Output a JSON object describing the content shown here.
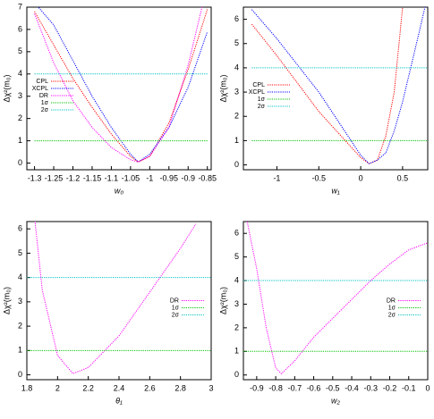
{
  "chart_data": [
    {
      "type": "line",
      "x_label": "w₀",
      "y_label": "Δχ²(m₀)",
      "x": [
        -1.3,
        -1.25,
        -1.2,
        -1.15,
        -1.1,
        -1.05,
        -1.03,
        -1.0,
        -0.95,
        -0.9,
        -0.85
      ],
      "series": [
        {
          "name": "CPL",
          "color": "#ff0000",
          "values": [
            6.8,
            5.3,
            3.8,
            2.5,
            1.3,
            0.3,
            0.05,
            0.3,
            1.8,
            4.2,
            6.9
          ]
        },
        {
          "name": "XCPL",
          "color": "#0000ff",
          "values": [
            7.2,
            6.2,
            4.6,
            3.0,
            1.6,
            0.4,
            0.05,
            0.4,
            1.6,
            3.4,
            5.9
          ]
        },
        {
          "name": "DR",
          "color": "#ff00ff",
          "values": [
            6.7,
            4.5,
            2.8,
            1.6,
            0.7,
            0.15,
            0.05,
            0.3,
            1.6,
            4.4,
            8
          ]
        },
        {
          "name": "1σ",
          "color": "#00c000",
          "values": [
            1,
            1,
            1,
            1,
            1,
            1,
            1,
            1,
            1,
            1,
            1
          ]
        },
        {
          "name": "2σ",
          "color": "#00c0c0",
          "values": [
            4,
            4,
            4,
            4,
            4,
            4,
            4,
            4,
            4,
            4,
            4
          ]
        }
      ],
      "xlim": [
        -1.32,
        -0.84
      ],
      "xticks": [
        -1.3,
        -1.25,
        -1.2,
        -1.15,
        -1.1,
        -1.05,
        -1,
        -0.95,
        -0.9,
        -0.85
      ],
      "ylim": [
        -0.3,
        7
      ],
      "yticks": [
        0,
        1,
        2,
        3,
        4,
        5,
        6,
        7
      ],
      "legend": "center left"
    },
    {
      "type": "line",
      "x_label": "w₁",
      "y_label": "Δχ²(m₀)",
      "x": [
        -1.3,
        -1,
        -0.5,
        0,
        0.1,
        0.2,
        0.3,
        0.4,
        0.5,
        0.7,
        0.8
      ],
      "series": [
        {
          "name": "CPL",
          "color": "#ff0000",
          "values": [
            5.8,
            4.5,
            2.2,
            0.3,
            0.05,
            0.2,
            1.2,
            3,
            6.5,
            null,
            null
          ]
        },
        {
          "name": "XCPL",
          "color": "#0000ff",
          "values": [
            6.4,
            5.2,
            3,
            0.4,
            0.05,
            0.2,
            0.5,
            1.4,
            2.6,
            5.5,
            7
          ]
        },
        {
          "name": "1σ",
          "color": "#00c000",
          "values": [
            1,
            1,
            1,
            1,
            1,
            1,
            1,
            1,
            1,
            1,
            1
          ]
        },
        {
          "name": "2σ",
          "color": "#00c0c0",
          "values": [
            4,
            4,
            4,
            4,
            4,
            4,
            4,
            4,
            4,
            4,
            4
          ]
        }
      ],
      "xlim": [
        -1.4,
        0.8
      ],
      "xticks": [
        -1,
        -0.5,
        0,
        0.5
      ],
      "ylim": [
        -0.2,
        6.5
      ],
      "yticks": [
        0,
        1,
        2,
        3,
        4,
        5,
        6
      ],
      "legend": "center left"
    },
    {
      "type": "line",
      "x_label": "θ₁",
      "y_label": "Δχ²(m₀)",
      "x": [
        1.8,
        1.85,
        1.9,
        2.0,
        2.1,
        2.2,
        2.4,
        2.6,
        2.8,
        2.9,
        3.0
      ],
      "series": [
        {
          "name": "DR",
          "color": "#ff00ff",
          "values": [
            null,
            6.5,
            3.5,
            0.8,
            0.05,
            0.3,
            1.6,
            3.4,
            5.2,
            6.2,
            null
          ]
        },
        {
          "name": "1σ",
          "color": "#00c000",
          "values": [
            1,
            1,
            1,
            1,
            1,
            1,
            1,
            1,
            1,
            1,
            1
          ]
        },
        {
          "name": "2σ",
          "color": "#00c0c0",
          "values": [
            4,
            4,
            4,
            4,
            4,
            4,
            4,
            4,
            4,
            4,
            4
          ]
        }
      ],
      "xlim": [
        1.8,
        3
      ],
      "xticks": [
        1.8,
        2,
        2.2,
        2.4,
        2.6,
        2.8,
        3
      ],
      "ylim": [
        -0.2,
        6.3
      ],
      "yticks": [
        0,
        1,
        2,
        3,
        4,
        5,
        6
      ],
      "legend": "center right"
    },
    {
      "type": "line",
      "x_label": "w₂",
      "y_label": "Δχ²(m₀)",
      "x": [
        -0.97,
        -0.95,
        -0.9,
        -0.85,
        -0.8,
        -0.77,
        -0.7,
        -0.6,
        -0.5,
        -0.4,
        -0.3,
        -0.2,
        -0.1,
        0
      ],
      "series": [
        {
          "name": "DR",
          "color": "#ff00ff",
          "values": [
            null,
            6.5,
            4.5,
            2,
            0.3,
            0.05,
            0.6,
            1.6,
            2.4,
            3.2,
            4,
            4.7,
            5.3,
            5.6
          ]
        },
        {
          "name": "1σ",
          "color": "#00c000",
          "values": [
            1,
            1,
            1,
            1,
            1,
            1,
            1,
            1,
            1,
            1,
            1,
            1,
            1,
            1
          ]
        },
        {
          "name": "2σ",
          "color": "#00c0c0",
          "values": [
            4,
            4,
            4,
            4,
            4,
            4,
            4,
            4,
            4,
            4,
            4,
            4,
            4,
            4
          ]
        }
      ],
      "xlim": [
        -0.97,
        0
      ],
      "xticks": [
        -0.9,
        -0.8,
        -0.7,
        -0.6,
        -0.5,
        -0.4,
        -0.3,
        -0.2,
        -0.1,
        0
      ],
      "ylim": [
        -0.2,
        6.5
      ],
      "yticks": [
        0,
        1,
        2,
        3,
        4,
        5,
        6
      ],
      "legend": "center right"
    }
  ]
}
